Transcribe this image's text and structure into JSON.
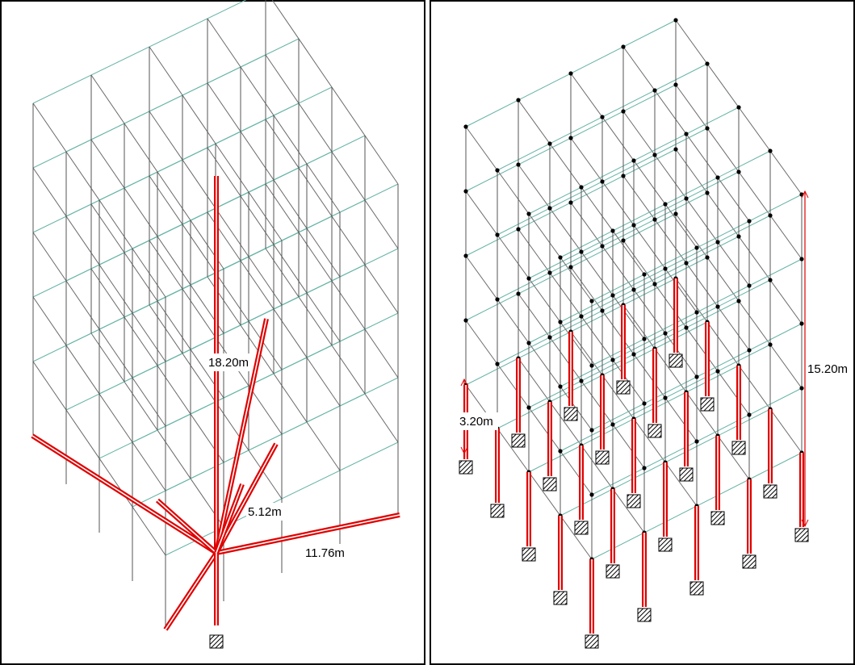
{
  "left_panel": {
    "dimensions": [
      "18.20m",
      "5.12m",
      "11.76m"
    ]
  },
  "right_panel": {
    "dimensions": [
      "3.20m",
      "15.20m"
    ]
  }
}
